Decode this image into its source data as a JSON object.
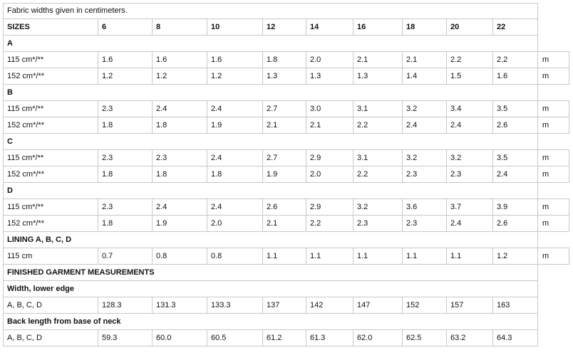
{
  "note": "Fabric widths given in centimeters.",
  "sizes_label": "SIZES",
  "sizes": [
    "6",
    "8",
    "10",
    "12",
    "14",
    "16",
    "18",
    "20",
    "22"
  ],
  "sections": [
    {
      "label": "A",
      "rows": [
        {
          "label": "115 cm*/**",
          "values": [
            "1.6",
            "1.6",
            "1.6",
            "1.8",
            "2.0",
            "2.1",
            "2.1",
            "2.2",
            "2.2"
          ],
          "unit": "m"
        },
        {
          "label": "152 cm*/**",
          "values": [
            "1.2",
            "1.2",
            "1.2",
            "1.3",
            "1.3",
            "1.3",
            "1.4",
            "1.5",
            "1.6"
          ],
          "unit": "m"
        }
      ]
    },
    {
      "label": "B",
      "rows": [
        {
          "label": "115 cm*/**",
          "values": [
            "2.3",
            "2.4",
            "2.4",
            "2.7",
            "3.0",
            "3.1",
            "3.2",
            "3.4",
            "3.5"
          ],
          "unit": "m"
        },
        {
          "label": "152 cm*/**",
          "values": [
            "1.8",
            "1.8",
            "1.9",
            "2.1",
            "2.1",
            "2.2",
            "2.4",
            "2.4",
            "2.6"
          ],
          "unit": "m"
        }
      ]
    },
    {
      "label": "C",
      "rows": [
        {
          "label": "115 cm*/**",
          "values": [
            "2.3",
            "2.3",
            "2.4",
            "2.7",
            "2.9",
            "3.1",
            "3.2",
            "3.2",
            "3.5"
          ],
          "unit": "m"
        },
        {
          "label": "152 cm*/**",
          "values": [
            "1.8",
            "1.8",
            "1.8",
            "1.9",
            "2.0",
            "2.2",
            "2.3",
            "2.3",
            "2.4"
          ],
          "unit": "m"
        }
      ]
    },
    {
      "label": "D",
      "rows": [
        {
          "label": "115 cm*/**",
          "values": [
            "2.3",
            "2.4",
            "2.4",
            "2.6",
            "2.9",
            "3.2",
            "3.6",
            "3.7",
            "3.9"
          ],
          "unit": "m"
        },
        {
          "label": "152 cm*/**",
          "values": [
            "1.8",
            "1.9",
            "2.0",
            "2.1",
            "2.2",
            "2.3",
            "2.3",
            "2.4",
            "2.6"
          ],
          "unit": "m"
        }
      ]
    },
    {
      "label": "LINING A, B, C, D",
      "rows": [
        {
          "label": "115 cm",
          "values": [
            "0.7",
            "0.8",
            "0.8",
            "1.1",
            "1.1",
            "1.1",
            "1.1",
            "1.1",
            "1.2"
          ],
          "unit": "m"
        }
      ]
    }
  ],
  "finished_title": "FINISHED GARMENT MEASUREMENTS",
  "measurements": [
    {
      "label": "Width, lower edge",
      "rows": [
        {
          "label": "A, B, C, D",
          "values": [
            "128.3",
            "131.3",
            "133.3",
            "137",
            "142",
            "147",
            "152",
            "157",
            "163"
          ]
        }
      ]
    },
    {
      "label": "Back length from base of neck",
      "rows": [
        {
          "label": "A, B, C, D",
          "values": [
            "59.3",
            "60.0",
            "60.5",
            "61.2",
            "61.3",
            "62.0",
            "62.5",
            "63.2",
            "64.3"
          ]
        }
      ]
    }
  ]
}
